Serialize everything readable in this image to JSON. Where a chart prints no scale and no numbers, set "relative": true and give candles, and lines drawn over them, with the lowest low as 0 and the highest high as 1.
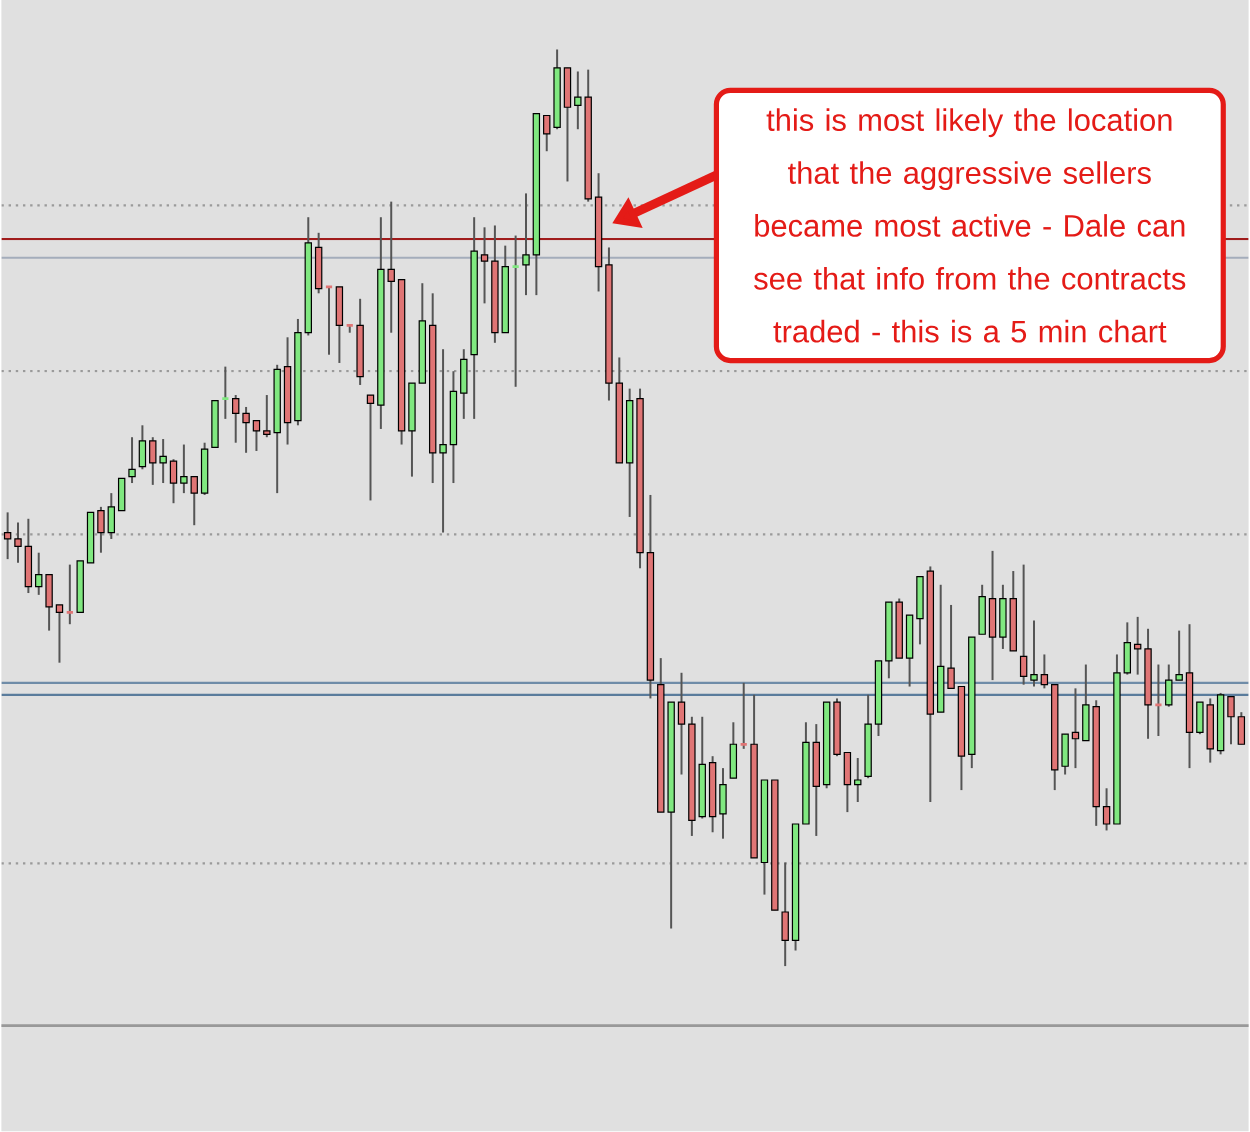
{
  "chart_data": {
    "type": "candlestick",
    "relative": true,
    "categories": [
      null,
      null,
      null,
      null,
      null,
      null,
      null,
      null,
      null,
      null,
      null,
      null,
      null,
      null,
      null,
      null,
      null,
      null,
      null,
      null,
      null,
      null,
      null,
      null,
      null,
      null,
      null,
      null,
      null,
      null,
      null,
      null,
      null,
      null,
      null,
      null,
      null,
      null,
      null,
      null,
      null,
      null,
      null,
      null,
      null,
      null,
      null,
      null,
      null,
      null,
      null,
      null,
      null,
      null,
      null,
      null,
      null,
      null,
      null,
      null,
      null,
      null,
      null,
      null,
      null,
      null,
      null,
      null,
      null,
      null,
      null,
      null,
      null,
      null,
      null,
      null,
      null,
      null,
      null,
      null,
      null,
      null,
      null,
      null,
      null,
      null,
      null,
      null,
      null,
      null,
      null,
      null,
      null,
      null,
      null,
      null,
      null,
      null,
      null,
      null,
      null,
      null,
      null,
      null,
      null,
      null,
      null,
      null,
      null,
      null,
      null,
      null,
      null,
      null,
      null,
      null,
      null,
      null,
      null,
      null
    ],
    "ohlc": [
      [
        0.473,
        0.495,
        0.444,
        0.466
      ],
      [
        0.466,
        0.484,
        0.44,
        0.458
      ],
      [
        0.458,
        0.488,
        0.407,
        0.414
      ],
      [
        0.414,
        0.451,
        0.405,
        0.427
      ],
      [
        0.427,
        0.427,
        0.366,
        0.392
      ],
      [
        0.394,
        0.394,
        0.331,
        0.386
      ],
      [
        0.386,
        0.438,
        0.373,
        0.386
      ],
      [
        0.386,
        0.442,
        0.386,
        0.442
      ],
      [
        0.44,
        0.495,
        0.44,
        0.495
      ],
      [
        0.497,
        0.501,
        0.451,
        0.473
      ],
      [
        0.473,
        0.516,
        0.466,
        0.501
      ],
      [
        0.497,
        0.532,
        0.497,
        0.532
      ],
      [
        0.534,
        0.577,
        0.527,
        0.542
      ],
      [
        0.545,
        0.59,
        0.542,
        0.573
      ],
      [
        0.573,
        0.577,
        0.525,
        0.549
      ],
      [
        0.549,
        0.575,
        0.527,
        0.556
      ],
      [
        0.551,
        0.553,
        0.505,
        0.527
      ],
      [
        0.527,
        0.569,
        0.516,
        0.534
      ],
      [
        0.534,
        0.534,
        0.481,
        0.516
      ],
      [
        0.516,
        0.571,
        0.514,
        0.564
      ],
      [
        0.566,
        0.617,
        0.566,
        0.617
      ],
      [
        0.619,
        0.654,
        0.597,
        0.619
      ],
      [
        0.619,
        0.623,
        0.571,
        0.603
      ],
      [
        0.603,
        0.61,
        0.56,
        0.593
      ],
      [
        0.595,
        0.595,
        0.562,
        0.584
      ],
      [
        0.584,
        0.623,
        0.577,
        0.58
      ],
      [
        0.582,
        0.656,
        0.516,
        0.651
      ],
      [
        0.654,
        0.686,
        0.569,
        0.593
      ],
      [
        0.595,
        0.706,
        0.59,
        0.691
      ],
      [
        0.691,
        0.817,
        0.688,
        0.789
      ],
      [
        0.784,
        0.8,
        0.734,
        0.739
      ],
      [
        0.741,
        0.741,
        0.667,
        0.741
      ],
      [
        0.741,
        0.741,
        0.658,
        0.699
      ],
      [
        0.699,
        0.699,
        0.691,
        0.699
      ],
      [
        0.699,
        0.728,
        0.634,
        0.643
      ],
      [
        0.623,
        0.623,
        0.508,
        0.614
      ],
      [
        0.612,
        0.817,
        0.586,
        0.76
      ],
      [
        0.76,
        0.834,
        0.691,
        0.747
      ],
      [
        0.749,
        0.749,
        0.569,
        0.584
      ],
      [
        0.584,
        0.636,
        0.534,
        0.636
      ],
      [
        0.636,
        0.745,
        0.636,
        0.704
      ],
      [
        0.699,
        0.734,
        0.527,
        0.56
      ],
      [
        0.56,
        0.673,
        0.473,
        0.569
      ],
      [
        0.569,
        0.649,
        0.527,
        0.627
      ],
      [
        0.625,
        0.673,
        0.597,
        0.662
      ],
      [
        0.667,
        0.817,
        0.597,
        0.78
      ],
      [
        0.776,
        0.806,
        0.723,
        0.769
      ],
      [
        0.769,
        0.808,
        0.68,
        0.691
      ],
      [
        0.691,
        0.786,
        0.691,
        0.763
      ],
      [
        0.763,
        0.797,
        0.632,
        0.763
      ],
      [
        0.765,
        0.843,
        0.732,
        0.776
      ],
      [
        0.776,
        0.93,
        0.732,
        0.93
      ],
      [
        0.928,
        0.928,
        0.889,
        0.908
      ],
      [
        0.915,
        1.0,
        0.913,
        0.98
      ],
      [
        0.98,
        0.98,
        0.856,
        0.937
      ],
      [
        0.939,
        0.976,
        0.913,
        0.948
      ],
      [
        0.948,
        0.978,
        0.834,
        0.837
      ],
      [
        0.839,
        0.865,
        0.736,
        0.763
      ],
      [
        0.765,
        0.784,
        0.617,
        0.636
      ],
      [
        0.636,
        0.664,
        0.549,
        0.549
      ],
      [
        0.549,
        0.63,
        0.49,
        0.617
      ],
      [
        0.619,
        0.63,
        0.434,
        0.451
      ],
      [
        0.451,
        0.514,
        0.292,
        0.312
      ],
      [
        0.307,
        0.336,
        0.168,
        0.168
      ],
      [
        0.168,
        0.288,
        0.041,
        0.288
      ],
      [
        0.288,
        0.32,
        0.209,
        0.264
      ],
      [
        0.264,
        0.272,
        0.142,
        0.159
      ],
      [
        0.163,
        0.272,
        0.161,
        0.22
      ],
      [
        0.222,
        0.229,
        0.146,
        0.163
      ],
      [
        0.166,
        0.216,
        0.139,
        0.198
      ],
      [
        0.205,
        0.266,
        0.205,
        0.242
      ],
      [
        0.242,
        0.309,
        0.237,
        0.242
      ],
      [
        0.242,
        0.296,
        0.118,
        0.118
      ],
      [
        0.113,
        0.203,
        0.078,
        0.203
      ],
      [
        0.203,
        0.203,
        0.061,
        0.061
      ],
      [
        0.059,
        0.113,
        0.0,
        0.028
      ],
      [
        0.028,
        0.155,
        0.017,
        0.155
      ],
      [
        0.155,
        0.266,
        0.155,
        0.244
      ],
      [
        0.244,
        0.264,
        0.142,
        0.196
      ],
      [
        0.198,
        0.288,
        0.194,
        0.288
      ],
      [
        0.288,
        0.292,
        0.229,
        0.231
      ],
      [
        0.233,
        0.233,
        0.168,
        0.198
      ],
      [
        0.198,
        0.227,
        0.179,
        0.203
      ],
      [
        0.207,
        0.296,
        0.205,
        0.264
      ],
      [
        0.264,
        0.333,
        0.251,
        0.333
      ],
      [
        0.333,
        0.397,
        0.314,
        0.397
      ],
      [
        0.397,
        0.401,
        0.336,
        0.336
      ],
      [
        0.336,
        0.383,
        0.305,
        0.383
      ],
      [
        0.379,
        0.425,
        0.351,
        0.425
      ],
      [
        0.431,
        0.436,
        0.179,
        0.275
      ],
      [
        0.277,
        0.416,
        0.277,
        0.327
      ],
      [
        0.325,
        0.394,
        0.303,
        0.303
      ],
      [
        0.305,
        0.305,
        0.192,
        0.229
      ],
      [
        0.231,
        0.359,
        0.216,
        0.359
      ],
      [
        0.362,
        0.416,
        0.362,
        0.403
      ],
      [
        0.401,
        0.453,
        0.312,
        0.359
      ],
      [
        0.359,
        0.416,
        0.346,
        0.401
      ],
      [
        0.401,
        0.431,
        0.344,
        0.344
      ],
      [
        0.338,
        0.438,
        0.307,
        0.316
      ],
      [
        0.312,
        0.377,
        0.305,
        0.318
      ],
      [
        0.318,
        0.34,
        0.303,
        0.307
      ],
      [
        0.307,
        0.307,
        0.192,
        0.214
      ],
      [
        0.218,
        0.253,
        0.209,
        0.253
      ],
      [
        0.255,
        0.303,
        0.216,
        0.248
      ],
      [
        0.246,
        0.329,
        0.246,
        0.285
      ],
      [
        0.283,
        0.29,
        0.153,
        0.174
      ],
      [
        0.174,
        0.194,
        0.148,
        0.155
      ],
      [
        0.155,
        0.34,
        0.155,
        0.32
      ],
      [
        0.32,
        0.375,
        0.318,
        0.353
      ],
      [
        0.351,
        0.381,
        0.318,
        0.346
      ],
      [
        0.346,
        0.368,
        0.248,
        0.285
      ],
      [
        0.285,
        0.329,
        0.251,
        0.285
      ],
      [
        0.285,
        0.329,
        0.283,
        0.312
      ],
      [
        0.312,
        0.366,
        0.312,
        0.318
      ],
      [
        0.32,
        0.373,
        0.216,
        0.255
      ],
      [
        0.255,
        0.288,
        0.253,
        0.288
      ],
      [
        0.285,
        0.292,
        0.222,
        0.237
      ],
      [
        0.235,
        0.298,
        0.231,
        0.296
      ],
      [
        0.294,
        0.294,
        0.242,
        0.272
      ],
      [
        0.272,
        0.277,
        0.242,
        0.242
      ]
    ],
    "colors": [
      "#e07575",
      "#e07575",
      "#e07575",
      "#80e880",
      "#e07575",
      "#e07575",
      "#e07575",
      "#80e880",
      "#80e880",
      "#e07575",
      "#80e880",
      "#80e880",
      "#80e880",
      "#80e880",
      "#e07575",
      "#80e880",
      "#e07575",
      "#80e880",
      "#e07575",
      "#80e880",
      "#80e880",
      "#80e880",
      "#e07575",
      "#e07575",
      "#e07575",
      "#e07575",
      "#80e880",
      "#e07575",
      "#80e880",
      "#80e880",
      "#e07575",
      "#e07575",
      "#e07575",
      "#e07575",
      "#e07575",
      "#e07575",
      "#80e880",
      "#e07575",
      "#e07575",
      "#80e880",
      "#80e880",
      "#e07575",
      "#80e880",
      "#80e880",
      "#80e880",
      "#80e880",
      "#e07575",
      "#e07575",
      "#80e880",
      "#80e880",
      "#80e880",
      "#80e880",
      "#e07575",
      "#80e880",
      "#e07575",
      "#80e880",
      "#e07575",
      "#e07575",
      "#e07575",
      "#e07575",
      "#80e880",
      "#e07575",
      "#e07575",
      "#e07575",
      "#80e880",
      "#e07575",
      "#e07575",
      "#80e880",
      "#e07575",
      "#80e880",
      "#80e880",
      "#e07575",
      "#e07575",
      "#80e880",
      "#e07575",
      "#e07575",
      "#80e880",
      "#80e880",
      "#e07575",
      "#80e880",
      "#e07575",
      "#e07575",
      "#80e880",
      "#80e880",
      "#80e880",
      "#80e880",
      "#e07575",
      "#80e880",
      "#80e880",
      "#e07575",
      "#80e880",
      "#e07575",
      "#e07575",
      "#80e880",
      "#80e880",
      "#e07575",
      "#80e880",
      "#e07575",
      "#e07575",
      "#80e880",
      "#e07575",
      "#e07575",
      "#80e880",
      "#e07575",
      "#80e880",
      "#e07575",
      "#e07575",
      "#80e880",
      "#80e880",
      "#e07575",
      "#e07575",
      "#e07575",
      "#80e880",
      "#80e880",
      "#e07575",
      "#80e880",
      "#e07575",
      "#80e880",
      "#e07575",
      "#e07575"
    ],
    "ref_lines": [
      {
        "axis": "y",
        "value": 0.83,
        "color": "#9a9a9a",
        "line_style": "dotted"
      },
      {
        "axis": "y",
        "value": 0.649,
        "color": "#9a9a9a",
        "line_style": "dotted"
      },
      {
        "axis": "y",
        "value": 0.471,
        "color": "#9a9a9a",
        "line_style": "dotted"
      },
      {
        "axis": "y",
        "value": 0.112,
        "color": "#9a9a9a",
        "line_style": "dotted"
      },
      {
        "axis": "y",
        "value": 0.793,
        "color": "#a01c1c",
        "line_style": "solid"
      },
      {
        "axis": "y",
        "value": 0.773,
        "color": "#a4adbb",
        "line_style": "solid"
      },
      {
        "axis": "y",
        "value": 0.309,
        "color": "#6f8ca8",
        "line_style": "solid"
      },
      {
        "axis": "y",
        "value": 0.296,
        "color": "#5a7c9c",
        "line_style": "solid"
      }
    ],
    "annotations": [
      "this is most likely the location that the aggressive sellers became most active - Dale can see that info from the contracts traded - this is a 5 min chart"
    ]
  }
}
